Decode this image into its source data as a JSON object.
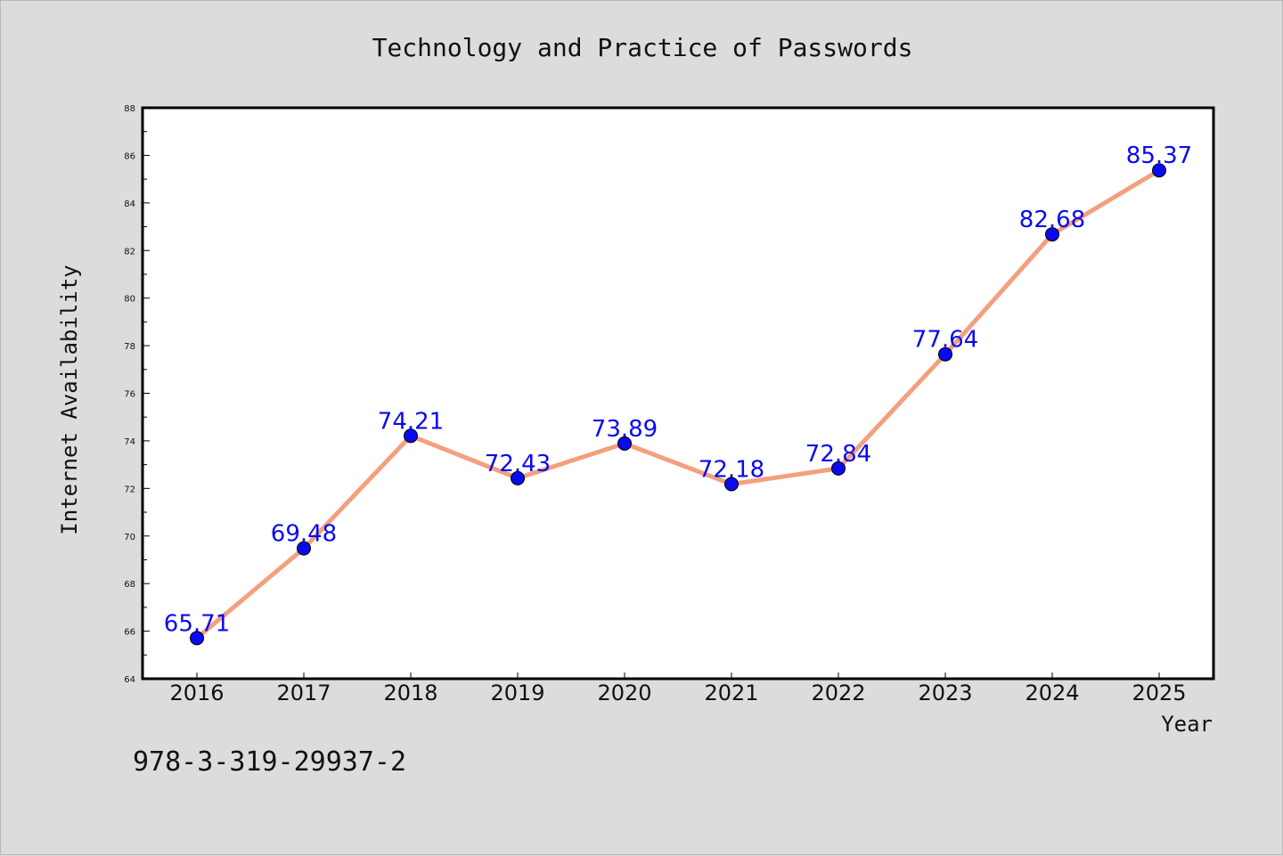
{
  "chart_data": {
    "type": "line",
    "title": "Technology and Practice of Passwords",
    "xlabel": "Year",
    "ylabel": "Internet Availability",
    "categories": [
      "2016",
      "2017",
      "2018",
      "2019",
      "2020",
      "2021",
      "2022",
      "2023",
      "2024",
      "2025"
    ],
    "series": [
      {
        "values": [
          65.71,
          69.48,
          74.21,
          72.43,
          73.89,
          72.18,
          72.84,
          77.64,
          82.68,
          85.37
        ]
      }
    ],
    "data_labels": [
      "65.71",
      "69.48",
      "74.21",
      "72.43",
      "73.89",
      "72.18",
      "72.84",
      "77.64",
      "82.68",
      "85.37"
    ],
    "ylim": [
      64,
      88
    ],
    "yticks": [
      "64",
      "66",
      "68",
      "70",
      "72",
      "74",
      "76",
      "78",
      "80",
      "82",
      "84",
      "86",
      "88"
    ],
    "grid": false,
    "legend": "none",
    "colors": {
      "line": "#f4a07e",
      "marker": "#0a0aee",
      "label": "#0a0aee",
      "background": "#dcdcdc",
      "plot_background": "#ffffff"
    }
  },
  "footer": {
    "isbn": "978-3-319-29937-2"
  }
}
